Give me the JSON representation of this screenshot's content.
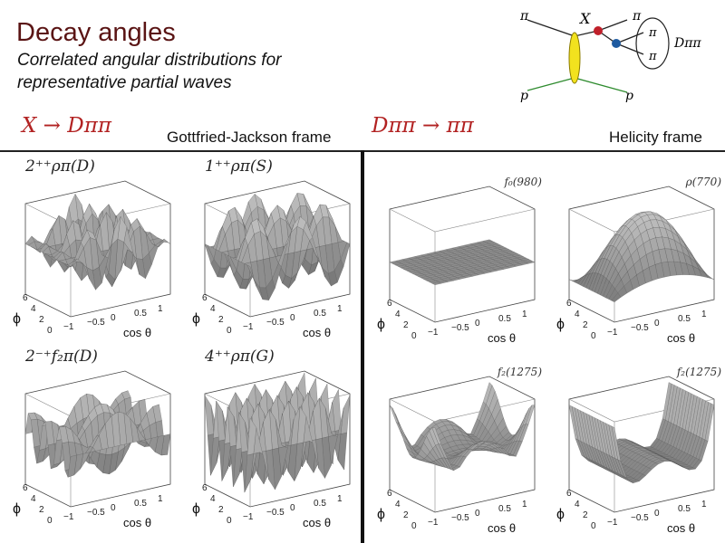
{
  "slide": {
    "title": "Decay angles",
    "subtitle_line1": "Correlated  angular distributions  for",
    "subtitle_line2": "representative partial waves",
    "left_process": "X → Dππ",
    "right_process": "Dππ → ππ",
    "left_frame": "Gottfried-Jackson frame",
    "right_frame": "Helicity frame"
  },
  "diagram": {
    "pi_top_left": "π",
    "pi_top_right": "π",
    "X": "X",
    "D_pipi": "Dππ",
    "pi_a": "π",
    "pi_b": "π",
    "p_left": "p",
    "p_right": "p"
  },
  "panels": [
    {
      "label": "2⁺⁺ρπ(D)"
    },
    {
      "label": "1⁺⁺ρπ(S)"
    },
    {
      "label": "f₀(980)"
    },
    {
      "label": "ρ(770)"
    },
    {
      "label": "2⁻⁺f₂π(D)"
    },
    {
      "label": "4⁺⁺ρπ(G)"
    },
    {
      "label": "f₂(1275)"
    },
    {
      "label": "f₂(1275)"
    }
  ],
  "axes": {
    "phi": "ϕ",
    "cos": "cos θ",
    "ticks_cos": [
      "−1",
      "−0.5",
      "0",
      "0.5",
      "1"
    ],
    "ticks_phi": [
      "0",
      "2",
      "4",
      "6"
    ]
  }
}
